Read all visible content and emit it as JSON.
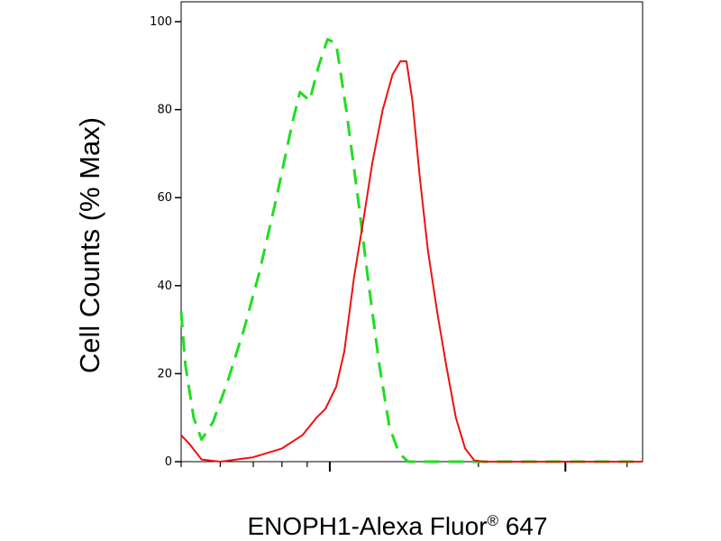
{
  "chart_data": {
    "type": "line",
    "title": "",
    "xlabel": {
      "main": "ENOPH1-Alexa Fluor",
      "superscript": "®",
      "suffix": " 647"
    },
    "ylabel": "Cell Counts (% Max)",
    "x_scale": "log",
    "xlim": [
      0.5,
      4.3
    ],
    "ylim": [
      0,
      100
    ],
    "y_ticks": [
      "0",
      "20",
      "40",
      "60",
      "80",
      "100"
    ],
    "x_major_ticks": [
      1,
      3
    ],
    "x_tick_labels": [],
    "grid": false,
    "legend": "none",
    "series": [
      {
        "style": "dashed",
        "color": "#22dd22",
        "points": [
          [
            0.5,
            34
          ],
          [
            0.51,
            22
          ],
          [
            0.53,
            10
          ],
          [
            0.55,
            5
          ],
          [
            0.58,
            9
          ],
          [
            0.62,
            18
          ],
          [
            0.67,
            30
          ],
          [
            0.72,
            43
          ],
          [
            0.78,
            60
          ],
          [
            0.84,
            77
          ],
          [
            0.87,
            84
          ],
          [
            0.91,
            82
          ],
          [
            0.95,
            90
          ],
          [
            0.99,
            96
          ],
          [
            1.03,
            95
          ],
          [
            1.08,
            80
          ],
          [
            1.14,
            60
          ],
          [
            1.2,
            40
          ],
          [
            1.26,
            22
          ],
          [
            1.32,
            8
          ],
          [
            1.38,
            2
          ],
          [
            1.44,
            0
          ],
          [
            1.5,
            0
          ],
          [
            4.3,
            0
          ]
        ]
      },
      {
        "style": "solid",
        "color": "#ee1111",
        "points": [
          [
            0.5,
            6
          ],
          [
            0.52,
            4
          ],
          [
            0.55,
            0.5
          ],
          [
            0.6,
            0
          ],
          [
            0.7,
            1
          ],
          [
            0.8,
            3
          ],
          [
            0.88,
            6
          ],
          [
            0.94,
            10
          ],
          [
            0.98,
            12
          ],
          [
            1.03,
            17
          ],
          [
            1.07,
            25
          ],
          [
            1.12,
            42
          ],
          [
            1.17,
            55
          ],
          [
            1.22,
            68
          ],
          [
            1.28,
            80
          ],
          [
            1.34,
            88
          ],
          [
            1.39,
            91
          ],
          [
            1.43,
            91
          ],
          [
            1.47,
            82
          ],
          [
            1.52,
            65
          ],
          [
            1.58,
            48
          ],
          [
            1.65,
            34
          ],
          [
            1.72,
            22
          ],
          [
            1.8,
            10
          ],
          [
            1.88,
            3
          ],
          [
            1.96,
            0.3
          ],
          [
            2.05,
            0
          ],
          [
            4.3,
            0
          ]
        ]
      }
    ]
  }
}
